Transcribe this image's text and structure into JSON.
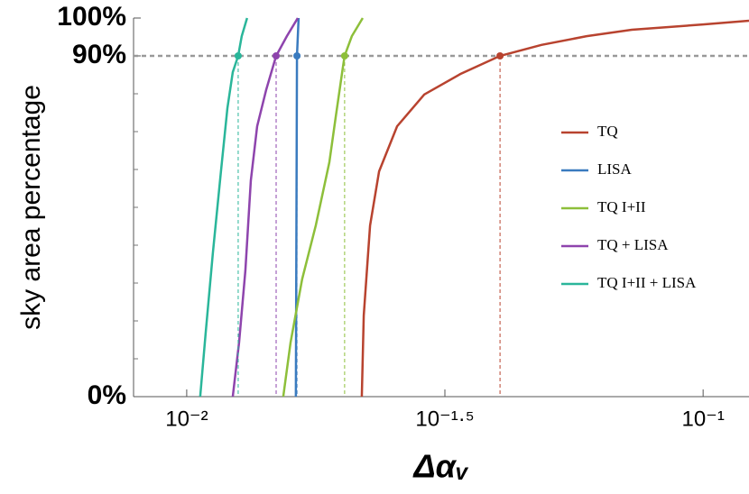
{
  "chart_data": {
    "type": "line",
    "xlabel": "Δαᵥ",
    "ylabel": "sky area percentage",
    "xscale": "log",
    "xlim": [
      0.00789,
      0.1227
    ],
    "ylim": [
      0,
      100
    ],
    "xticks": [
      {
        "value": 0.01,
        "label": "10⁻²"
      },
      {
        "value": 0.03162,
        "label": "10⁻¹·⁵"
      },
      {
        "value": 0.1,
        "label": "10⁻¹"
      }
    ],
    "yticks": [
      {
        "value": 0,
        "label": "0%"
      },
      {
        "value": 90,
        "label": "90%"
      },
      {
        "value": 100,
        "label": "100%"
      }
    ],
    "yminorticks": [
      10,
      20,
      30,
      40,
      50,
      60,
      70,
      80
    ],
    "hline": 90,
    "legend": "right",
    "series": [
      {
        "name": "TQ",
        "color": "#b8432f",
        "x": [
          0.02183,
          0.02202,
          0.02265,
          0.02358,
          0.02555,
          0.02884,
          0.03387,
          0.04043,
          0.04864,
          0.05949,
          0.07276,
          0.1,
          0.1227
        ],
        "values": [
          0,
          21.4,
          45.2,
          59.5,
          71.4,
          79.8,
          85.2,
          90,
          92.9,
          95.2,
          96.9,
          98.3,
          99.3
        ]
      },
      {
        "name": "LISA",
        "color": "#3a7bbf",
        "x": [
          0.01627,
          0.01635,
          0.01647
        ],
        "values": [
          0,
          90,
          100
        ]
      },
      {
        "name": "TQ I+II",
        "color": "#8dbf3a",
        "x": [
          0.01538,
          0.01589,
          0.01673,
          0.01778,
          0.01889,
          0.01943,
          0.02006,
          0.02022,
          0.02088,
          0.02192
        ],
        "values": [
          0,
          14.3,
          31.0,
          45.2,
          61.9,
          73.8,
          86.9,
          90,
          95.2,
          100
        ]
      },
      {
        "name": "TQ + LISA",
        "color": "#8e44ad",
        "x": [
          0.01228,
          0.01263,
          0.01299,
          0.01331,
          0.01369,
          0.01425,
          0.0149,
          0.01563,
          0.01641
        ],
        "values": [
          0,
          14.3,
          33.3,
          57.1,
          71.4,
          81.0,
          90,
          95.2,
          100
        ]
      },
      {
        "name": "TQ I+II + LISA",
        "color": "#2ab69a",
        "x": [
          0.01062,
          0.01088,
          0.01124,
          0.01165,
          0.01199,
          0.01228,
          0.01258,
          0.01278,
          0.01309
        ],
        "values": [
          0,
          16.7,
          38.1,
          59.5,
          76.2,
          85.7,
          90,
          95.2,
          100
        ]
      }
    ]
  }
}
